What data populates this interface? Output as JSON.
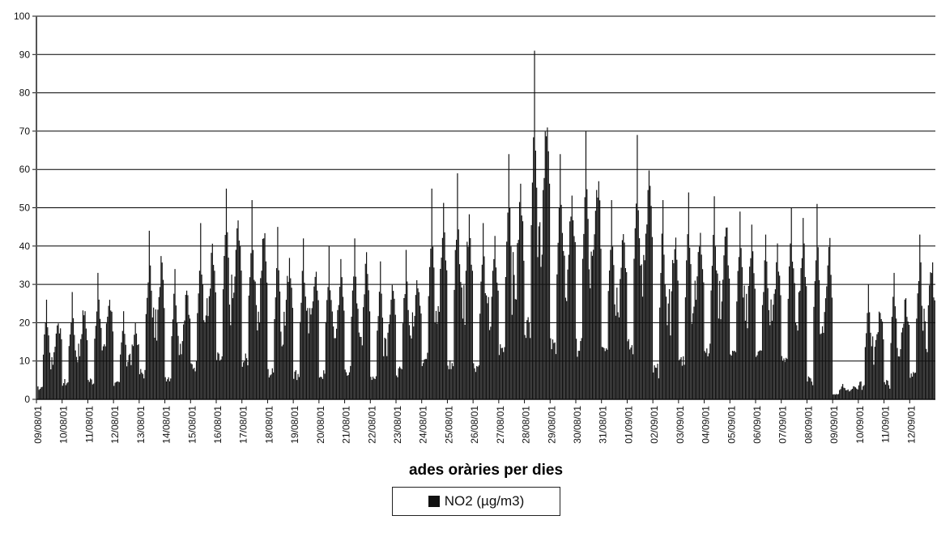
{
  "chart_data": {
    "type": "bar",
    "title": "",
    "xlabel": "ades   oràries  per dies",
    "ylabel": "",
    "ylim": [
      0,
      100
    ],
    "yticks": [
      0,
      10,
      20,
      30,
      40,
      50,
      60,
      70,
      80,
      90,
      100
    ],
    "grid": true,
    "legend_position": "bottom",
    "colors": {
      "bars": "#111111",
      "grid": "#000000",
      "background": "#ffffff"
    },
    "categories": [
      "09/08/01",
      "10/08/01",
      "11/08/01",
      "12/08/01",
      "13/08/01",
      "14/08/01",
      "15/08/01",
      "16/08/01",
      "17/08/01",
      "18/08/01",
      "19/08/01",
      "20/08/01",
      "21/08/01",
      "22/08/01",
      "23/08/01",
      "24/08/01",
      "25/08/01",
      "26/08/01",
      "27/08/01",
      "28/08/01",
      "29/08/01",
      "30/08/01",
      "31/08/01",
      "01/09/01",
      "02/09/01",
      "03/09/01",
      "04/09/01",
      "05/09/01",
      "06/09/01",
      "07/09/01",
      "08/09/01",
      "09/09/01",
      "10/09/01",
      "11/09/01",
      "12/09/01"
    ],
    "series": [
      {
        "name": "NO2 (µg/m3)",
        "daily_max": [
          26,
          28,
          33,
          23,
          44,
          34,
          46,
          55,
          52,
          45,
          42,
          40,
          42,
          36,
          39,
          55,
          59,
          46,
          64,
          91,
          64,
          70,
          52,
          69,
          52,
          54,
          53,
          49,
          43,
          50,
          51,
          4,
          30,
          33,
          43
        ],
        "daily_min": [
          1,
          2,
          2,
          2,
          3,
          3,
          5,
          6,
          6,
          3,
          3,
          3,
          4,
          3,
          4,
          6,
          4,
          5,
          8,
          12,
          9,
          8,
          10,
          8,
          3,
          6,
          9,
          8,
          9,
          7,
          1,
          1,
          1,
          1,
          2
        ]
      }
    ]
  },
  "legend": {
    "label": "NO2 (µg/m3)"
  }
}
